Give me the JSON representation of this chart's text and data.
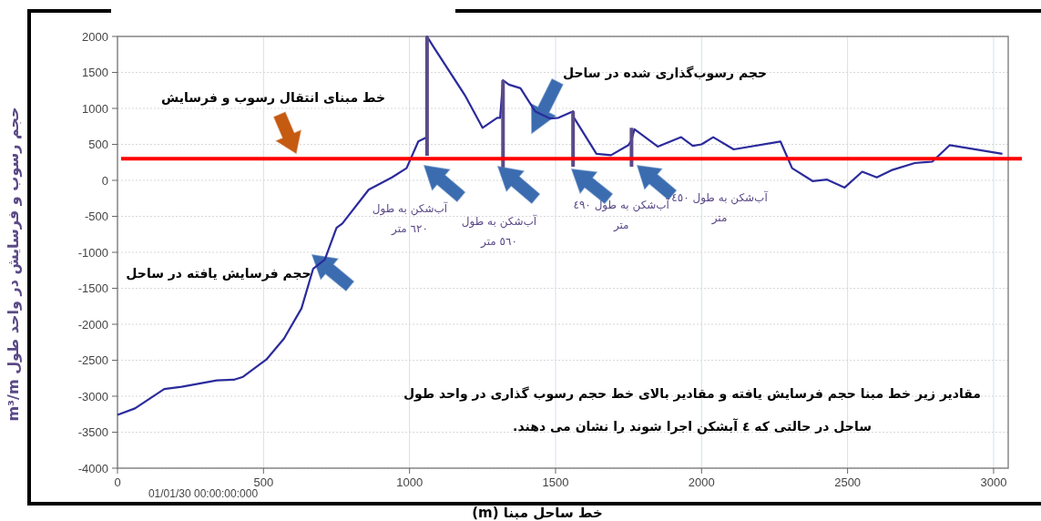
{
  "chart_data": {
    "type": "line",
    "xlabel": "خط ساحل مبنا (m)",
    "ylabel": "حجم رسوب و فرسایش در واحد طول m³/m",
    "xlim": [
      0,
      3050
    ],
    "ylim": [
      -4000,
      2000
    ],
    "xticks": [
      0,
      500,
      1000,
      1500,
      2000,
      2500,
      3000
    ],
    "yticks": [
      -4000,
      -3500,
      -3000,
      -2500,
      -2000,
      -1500,
      -1000,
      -500,
      0,
      500,
      1000,
      1500,
      2000
    ],
    "grid": true,
    "marker": "none",
    "line_style": "solid",
    "series": [
      {
        "color": "#2b2b9c",
        "x": [
          0,
          60,
          160,
          220,
          340,
          400,
          430,
          510,
          570,
          630,
          670,
          710,
          750,
          770,
          860,
          940,
          990,
          1030,
          1060,
          1060,
          1080,
          1190,
          1250,
          1300,
          1310,
          1320,
          1340,
          1380,
          1430,
          1480,
          1510,
          1560,
          1560,
          1640,
          1690,
          1750,
          1760,
          1770,
          1850,
          1930,
          1970,
          2000,
          2040,
          2110,
          2270,
          2310,
          2380,
          2430,
          2490,
          2550,
          2600,
          2650,
          2730,
          2790,
          2850,
          3030
        ],
        "values": [
          -3260,
          -3170,
          -2900,
          -2870,
          -2780,
          -2770,
          -2730,
          -2490,
          -2200,
          -1780,
          -1230,
          -1100,
          -660,
          -600,
          -130,
          40,
          170,
          540,
          600,
          2000,
          1870,
          1180,
          730,
          870,
          870,
          1390,
          1330,
          1280,
          960,
          860,
          870,
          960,
          890,
          370,
          350,
          490,
          560,
          710,
          470,
          600,
          480,
          500,
          600,
          430,
          540,
          170,
          -10,
          10,
          -100,
          120,
          40,
          140,
          240,
          260,
          490,
          370
        ]
      },
      {
        "color": "#5b4a87",
        "x": [
          1060,
          1060
        ],
        "values": [
          340,
          2000
        ]
      },
      {
        "color": "#5b4a87",
        "x": [
          1320,
          1320
        ],
        "values": [
          180,
          1390
        ]
      },
      {
        "color": "#5b4a87",
        "x": [
          1560,
          1560
        ],
        "values": [
          190,
          960
        ]
      },
      {
        "color": "#5b4a87",
        "x": [
          1760,
          1760
        ],
        "values": [
          190,
          730
        ]
      }
    ],
    "ref_lines": [
      {
        "axis": "y",
        "value": 300,
        "color": "#ff0000",
        "line_style": "solid"
      }
    ],
    "annotations": [
      "خط مبنای انتقال رسوب و فرسایش",
      "حجم رسوب‌گذاری شده در ساحل",
      "حجم فرسایش یافته در ساحل",
      "آب‌شکن به طول ٦٢٠ متر",
      "آب‌شکن به طول ٥٦٠ متر",
      {
        "text": "آب‌شکن به طول ٤٩٠ متر",
        "x": 1560,
        "y": 150
      },
      "آب‌شکن به طول ٤٥٠ متر",
      "مقادیر زیر خط مبنا حجم فرسایش یافته و مقادیر بالای خط حجم رسوب گذاری در واحد طول ساحل در حالتی که ٤ آبشکن اجرا شوند را نشان می دهند.",
      "01/01/30 00:00:00:000"
    ]
  }
}
